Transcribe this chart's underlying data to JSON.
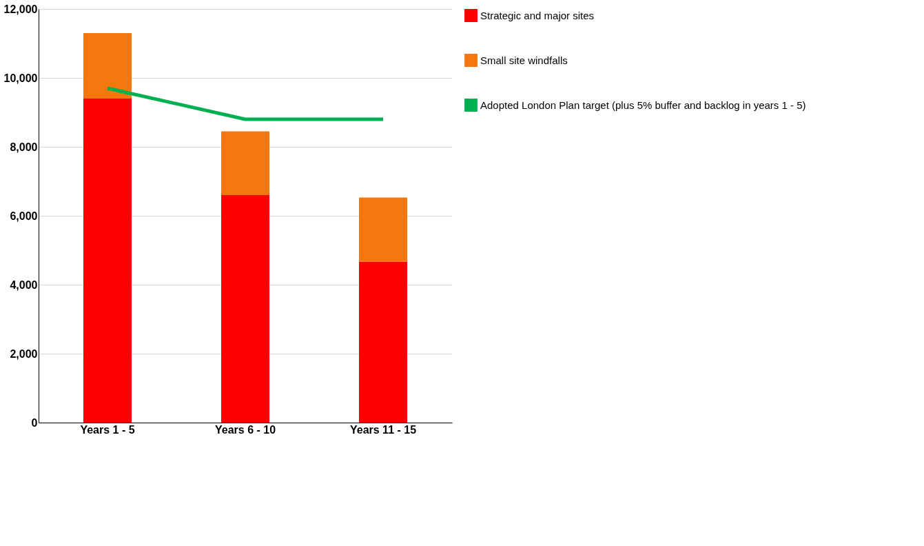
{
  "chart_data": {
    "type": "bar",
    "stacked": true,
    "categories": [
      "Years 1 - 5",
      "Years 6 - 10",
      "Years 11 - 15"
    ],
    "series": [
      {
        "name": "Strategic and major sites",
        "color": "#ff0000",
        "values": [
          9400,
          6600,
          4670
        ]
      },
      {
        "name": "Small site windfalls",
        "color": "#f5780f",
        "values": [
          1900,
          1850,
          1860
        ]
      },
      {
        "name": "Adopted London Plan target (plus 5% buffer and backlog in years 1 - 5)",
        "color": "#00b050",
        "type": "line",
        "values": [
          9700,
          8800,
          8800
        ]
      }
    ],
    "ylim": [
      0,
      12000
    ],
    "yticks": [
      0,
      {
        "value": 2000,
        "label": "2,000"
      },
      {
        "value": 4000,
        "label": "4,000"
      },
      {
        "value": 6000,
        "label": "6,000"
      },
      {
        "value": 8000,
        "label": "8,000"
      },
      {
        "value": 10000,
        "label": "10,000"
      },
      {
        "value": 12000,
        "label": "12,000"
      }
    ],
    "grid": "y",
    "legend": "right"
  }
}
